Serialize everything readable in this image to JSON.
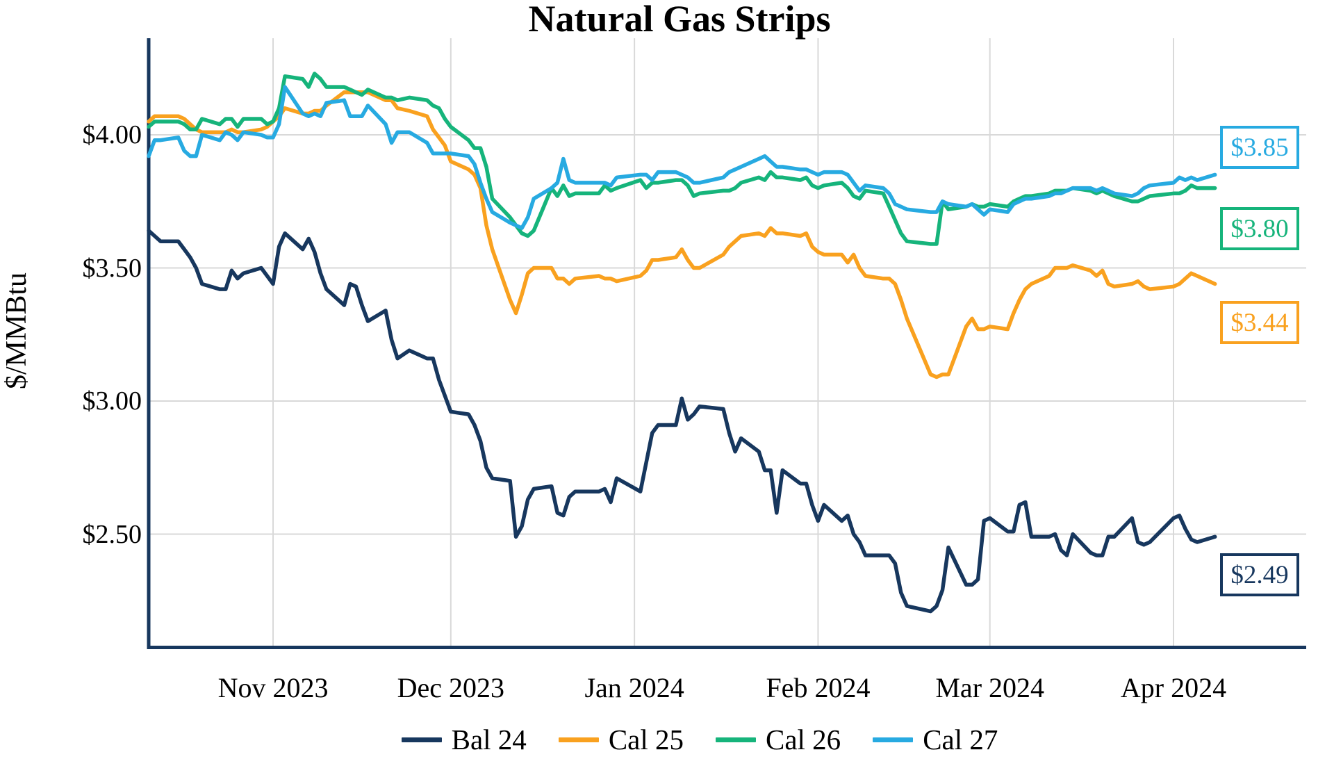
{
  "title": "Natural Gas Strips",
  "y_axis": {
    "label": "$/MMBtu",
    "ticks": [
      {
        "label": "$4.00",
        "value": 4.0
      },
      {
        "label": "$3.50",
        "value": 3.5
      },
      {
        "label": "$3.00",
        "value": 3.0
      },
      {
        "label": "$2.50",
        "value": 2.5
      }
    ]
  },
  "x_axis": {
    "day0": "2023-10-11",
    "ticks": [
      {
        "label": "Nov 2023",
        "day": 21
      },
      {
        "label": "Dec 2023",
        "day": 51
      },
      {
        "label": "Jan 2024",
        "day": 82
      },
      {
        "label": "Feb 2024",
        "day": 113
      },
      {
        "label": "Mar 2024",
        "day": 142
      },
      {
        "label": "Apr 2024",
        "day": 173
      }
    ]
  },
  "colors": {
    "navy": "#17375E",
    "orange": "#F9A11F",
    "green": "#16B47B",
    "cyan": "#27AAE1",
    "gridline": "#D9D9D9",
    "axis": "#17375E"
  },
  "chart_data": {
    "type": "line",
    "title": "Natural Gas Strips",
    "xlabel": "",
    "ylabel": "$/MMBtu",
    "ylim": [
      2.08,
      4.36
    ],
    "grid": true,
    "legend_position": "bottom",
    "x_unit": "calendar days since 2023-10-11 (trading days only)",
    "x": [
      0,
      1,
      2,
      5,
      6,
      7,
      8,
      9,
      12,
      13,
      14,
      15,
      16,
      19,
      20,
      21,
      22,
      23,
      26,
      27,
      28,
      29,
      30,
      33,
      34,
      35,
      36,
      37,
      40,
      41,
      42,
      44,
      47,
      48,
      49,
      50,
      51,
      54,
      55,
      56,
      57,
      58,
      61,
      62,
      63,
      64,
      65,
      68,
      69,
      70,
      71,
      72,
      76,
      77,
      78,
      79,
      83,
      84,
      85,
      86,
      89,
      90,
      91,
      92,
      93,
      97,
      98,
      99,
      100,
      103,
      104,
      105,
      106,
      107,
      110,
      111,
      112,
      113,
      114,
      117,
      118,
      119,
      120,
      121,
      124,
      125,
      126,
      127,
      128,
      132,
      133,
      134,
      135,
      138,
      139,
      140,
      141,
      142,
      145,
      146,
      147,
      148,
      149,
      152,
      153,
      154,
      155,
      156,
      159,
      160,
      161,
      162,
      163,
      166,
      167,
      168,
      169,
      173,
      174,
      175,
      176,
      177,
      180
    ],
    "series": [
      {
        "name": "Bal 24",
        "color": "#17375E",
        "end_label": "$2.49",
        "end_value": 2.49,
        "values": [
          3.64,
          3.62,
          3.6,
          3.6,
          3.57,
          3.54,
          3.5,
          3.44,
          3.42,
          3.42,
          3.49,
          3.46,
          3.48,
          3.5,
          3.47,
          3.44,
          3.58,
          3.63,
          3.57,
          3.61,
          3.56,
          3.48,
          3.42,
          3.36,
          3.44,
          3.43,
          3.36,
          3.3,
          3.34,
          3.23,
          3.16,
          3.19,
          3.16,
          3.16,
          3.08,
          3.02,
          2.96,
          2.95,
          2.91,
          2.85,
          2.75,
          2.71,
          2.7,
          2.49,
          2.53,
          2.63,
          2.67,
          2.68,
          2.58,
          2.57,
          2.64,
          2.66,
          2.66,
          2.67,
          2.62,
          2.71,
          2.66,
          2.77,
          2.88,
          2.91,
          2.91,
          3.01,
          2.93,
          2.95,
          2.98,
          2.97,
          2.88,
          2.81,
          2.86,
          2.81,
          2.74,
          2.74,
          2.58,
          2.74,
          2.69,
          2.69,
          2.61,
          2.55,
          2.61,
          2.55,
          2.57,
          2.5,
          2.47,
          2.42,
          2.42,
          2.42,
          2.39,
          2.28,
          2.23,
          2.21,
          2.23,
          2.29,
          2.45,
          2.31,
          2.31,
          2.33,
          2.55,
          2.56,
          2.51,
          2.51,
          2.61,
          2.62,
          2.49,
          2.49,
          2.5,
          2.44,
          2.42,
          2.5,
          2.43,
          2.42,
          2.42,
          2.49,
          2.49,
          2.56,
          2.47,
          2.46,
          2.47,
          2.56,
          2.57,
          2.52,
          2.48,
          2.47,
          2.49
        ]
      },
      {
        "name": "Cal 25",
        "color": "#F9A11F",
        "end_label": "$3.44",
        "end_value": 3.44,
        "values": [
          4.05,
          4.07,
          4.07,
          4.07,
          4.06,
          4.04,
          4.02,
          4.01,
          4.01,
          4.01,
          4.02,
          4.01,
          4.01,
          4.02,
          4.03,
          4.05,
          4.07,
          4.1,
          4.08,
          4.08,
          4.09,
          4.09,
          4.11,
          4.16,
          4.16,
          4.16,
          4.16,
          4.16,
          4.13,
          4.13,
          4.1,
          4.09,
          4.07,
          4.02,
          3.99,
          3.96,
          3.9,
          3.87,
          3.85,
          3.8,
          3.66,
          3.57,
          3.38,
          3.33,
          3.4,
          3.48,
          3.5,
          3.5,
          3.46,
          3.46,
          3.44,
          3.46,
          3.47,
          3.46,
          3.46,
          3.45,
          3.47,
          3.49,
          3.53,
          3.53,
          3.54,
          3.57,
          3.53,
          3.5,
          3.5,
          3.55,
          3.58,
          3.6,
          3.62,
          3.63,
          3.62,
          3.65,
          3.63,
          3.63,
          3.62,
          3.63,
          3.58,
          3.56,
          3.55,
          3.55,
          3.52,
          3.55,
          3.5,
          3.47,
          3.46,
          3.46,
          3.44,
          3.38,
          3.31,
          3.1,
          3.09,
          3.1,
          3.1,
          3.28,
          3.31,
          3.27,
          3.27,
          3.28,
          3.27,
          3.33,
          3.38,
          3.42,
          3.44,
          3.47,
          3.5,
          3.5,
          3.5,
          3.51,
          3.49,
          3.47,
          3.49,
          3.44,
          3.43,
          3.44,
          3.45,
          3.43,
          3.42,
          3.43,
          3.44,
          3.46,
          3.48,
          3.47,
          3.44
        ]
      },
      {
        "name": "Cal 26",
        "color": "#16B47B",
        "end_label": "$3.80",
        "end_value": 3.8,
        "values": [
          4.03,
          4.05,
          4.05,
          4.05,
          4.04,
          4.02,
          4.02,
          4.06,
          4.04,
          4.06,
          4.06,
          4.03,
          4.06,
          4.06,
          4.04,
          4.05,
          4.1,
          4.22,
          4.21,
          4.18,
          4.23,
          4.21,
          4.18,
          4.18,
          4.17,
          4.16,
          4.15,
          4.17,
          4.14,
          4.14,
          4.13,
          4.14,
          4.13,
          4.11,
          4.1,
          4.06,
          4.03,
          3.98,
          3.95,
          3.95,
          3.88,
          3.76,
          3.69,
          3.66,
          3.63,
          3.62,
          3.64,
          3.8,
          3.77,
          3.81,
          3.77,
          3.78,
          3.78,
          3.81,
          3.79,
          3.8,
          3.83,
          3.8,
          3.82,
          3.82,
          3.83,
          3.83,
          3.81,
          3.77,
          3.78,
          3.79,
          3.79,
          3.8,
          3.82,
          3.84,
          3.83,
          3.86,
          3.84,
          3.84,
          3.83,
          3.84,
          3.81,
          3.8,
          3.81,
          3.82,
          3.8,
          3.77,
          3.76,
          3.79,
          3.78,
          3.73,
          3.68,
          3.63,
          3.6,
          3.59,
          3.59,
          3.75,
          3.72,
          3.73,
          3.74,
          3.73,
          3.73,
          3.74,
          3.73,
          3.75,
          3.76,
          3.77,
          3.77,
          3.78,
          3.79,
          3.79,
          3.79,
          3.8,
          3.79,
          3.78,
          3.79,
          3.78,
          3.77,
          3.75,
          3.75,
          3.76,
          3.77,
          3.78,
          3.78,
          3.79,
          3.81,
          3.8,
          3.8
        ]
      },
      {
        "name": "Cal 27",
        "color": "#27AAE1",
        "end_label": "$3.85",
        "end_value": 3.85,
        "values": [
          3.92,
          3.98,
          3.98,
          3.99,
          3.94,
          3.92,
          3.92,
          4.0,
          3.98,
          4.01,
          4.0,
          3.98,
          4.01,
          4.0,
          3.99,
          3.99,
          4.04,
          4.18,
          4.08,
          4.07,
          4.08,
          4.07,
          4.12,
          4.13,
          4.07,
          4.07,
          4.07,
          4.11,
          4.04,
          3.97,
          4.01,
          4.01,
          3.97,
          3.93,
          3.93,
          3.93,
          3.93,
          3.92,
          3.89,
          3.82,
          3.76,
          3.71,
          3.67,
          3.66,
          3.65,
          3.69,
          3.76,
          3.8,
          3.82,
          3.91,
          3.83,
          3.82,
          3.82,
          3.82,
          3.81,
          3.84,
          3.85,
          3.85,
          3.83,
          3.86,
          3.86,
          3.85,
          3.84,
          3.82,
          3.82,
          3.84,
          3.86,
          3.87,
          3.88,
          3.91,
          3.92,
          3.9,
          3.88,
          3.88,
          3.87,
          3.87,
          3.86,
          3.85,
          3.86,
          3.86,
          3.85,
          3.82,
          3.79,
          3.81,
          3.8,
          3.78,
          3.74,
          3.73,
          3.72,
          3.71,
          3.71,
          3.75,
          3.74,
          3.73,
          3.74,
          3.72,
          3.7,
          3.72,
          3.71,
          3.74,
          3.75,
          3.76,
          3.76,
          3.77,
          3.78,
          3.78,
          3.79,
          3.8,
          3.8,
          3.79,
          3.8,
          3.79,
          3.78,
          3.77,
          3.78,
          3.8,
          3.81,
          3.82,
          3.84,
          3.83,
          3.84,
          3.83,
          3.85
        ]
      }
    ]
  },
  "legend": {
    "items": [
      {
        "label": "Bal 24",
        "color": "#17375E"
      },
      {
        "label": "Cal 25",
        "color": "#F9A11F"
      },
      {
        "label": "Cal 26",
        "color": "#16B47B"
      },
      {
        "label": "Cal 27",
        "color": "#27AAE1"
      }
    ]
  }
}
